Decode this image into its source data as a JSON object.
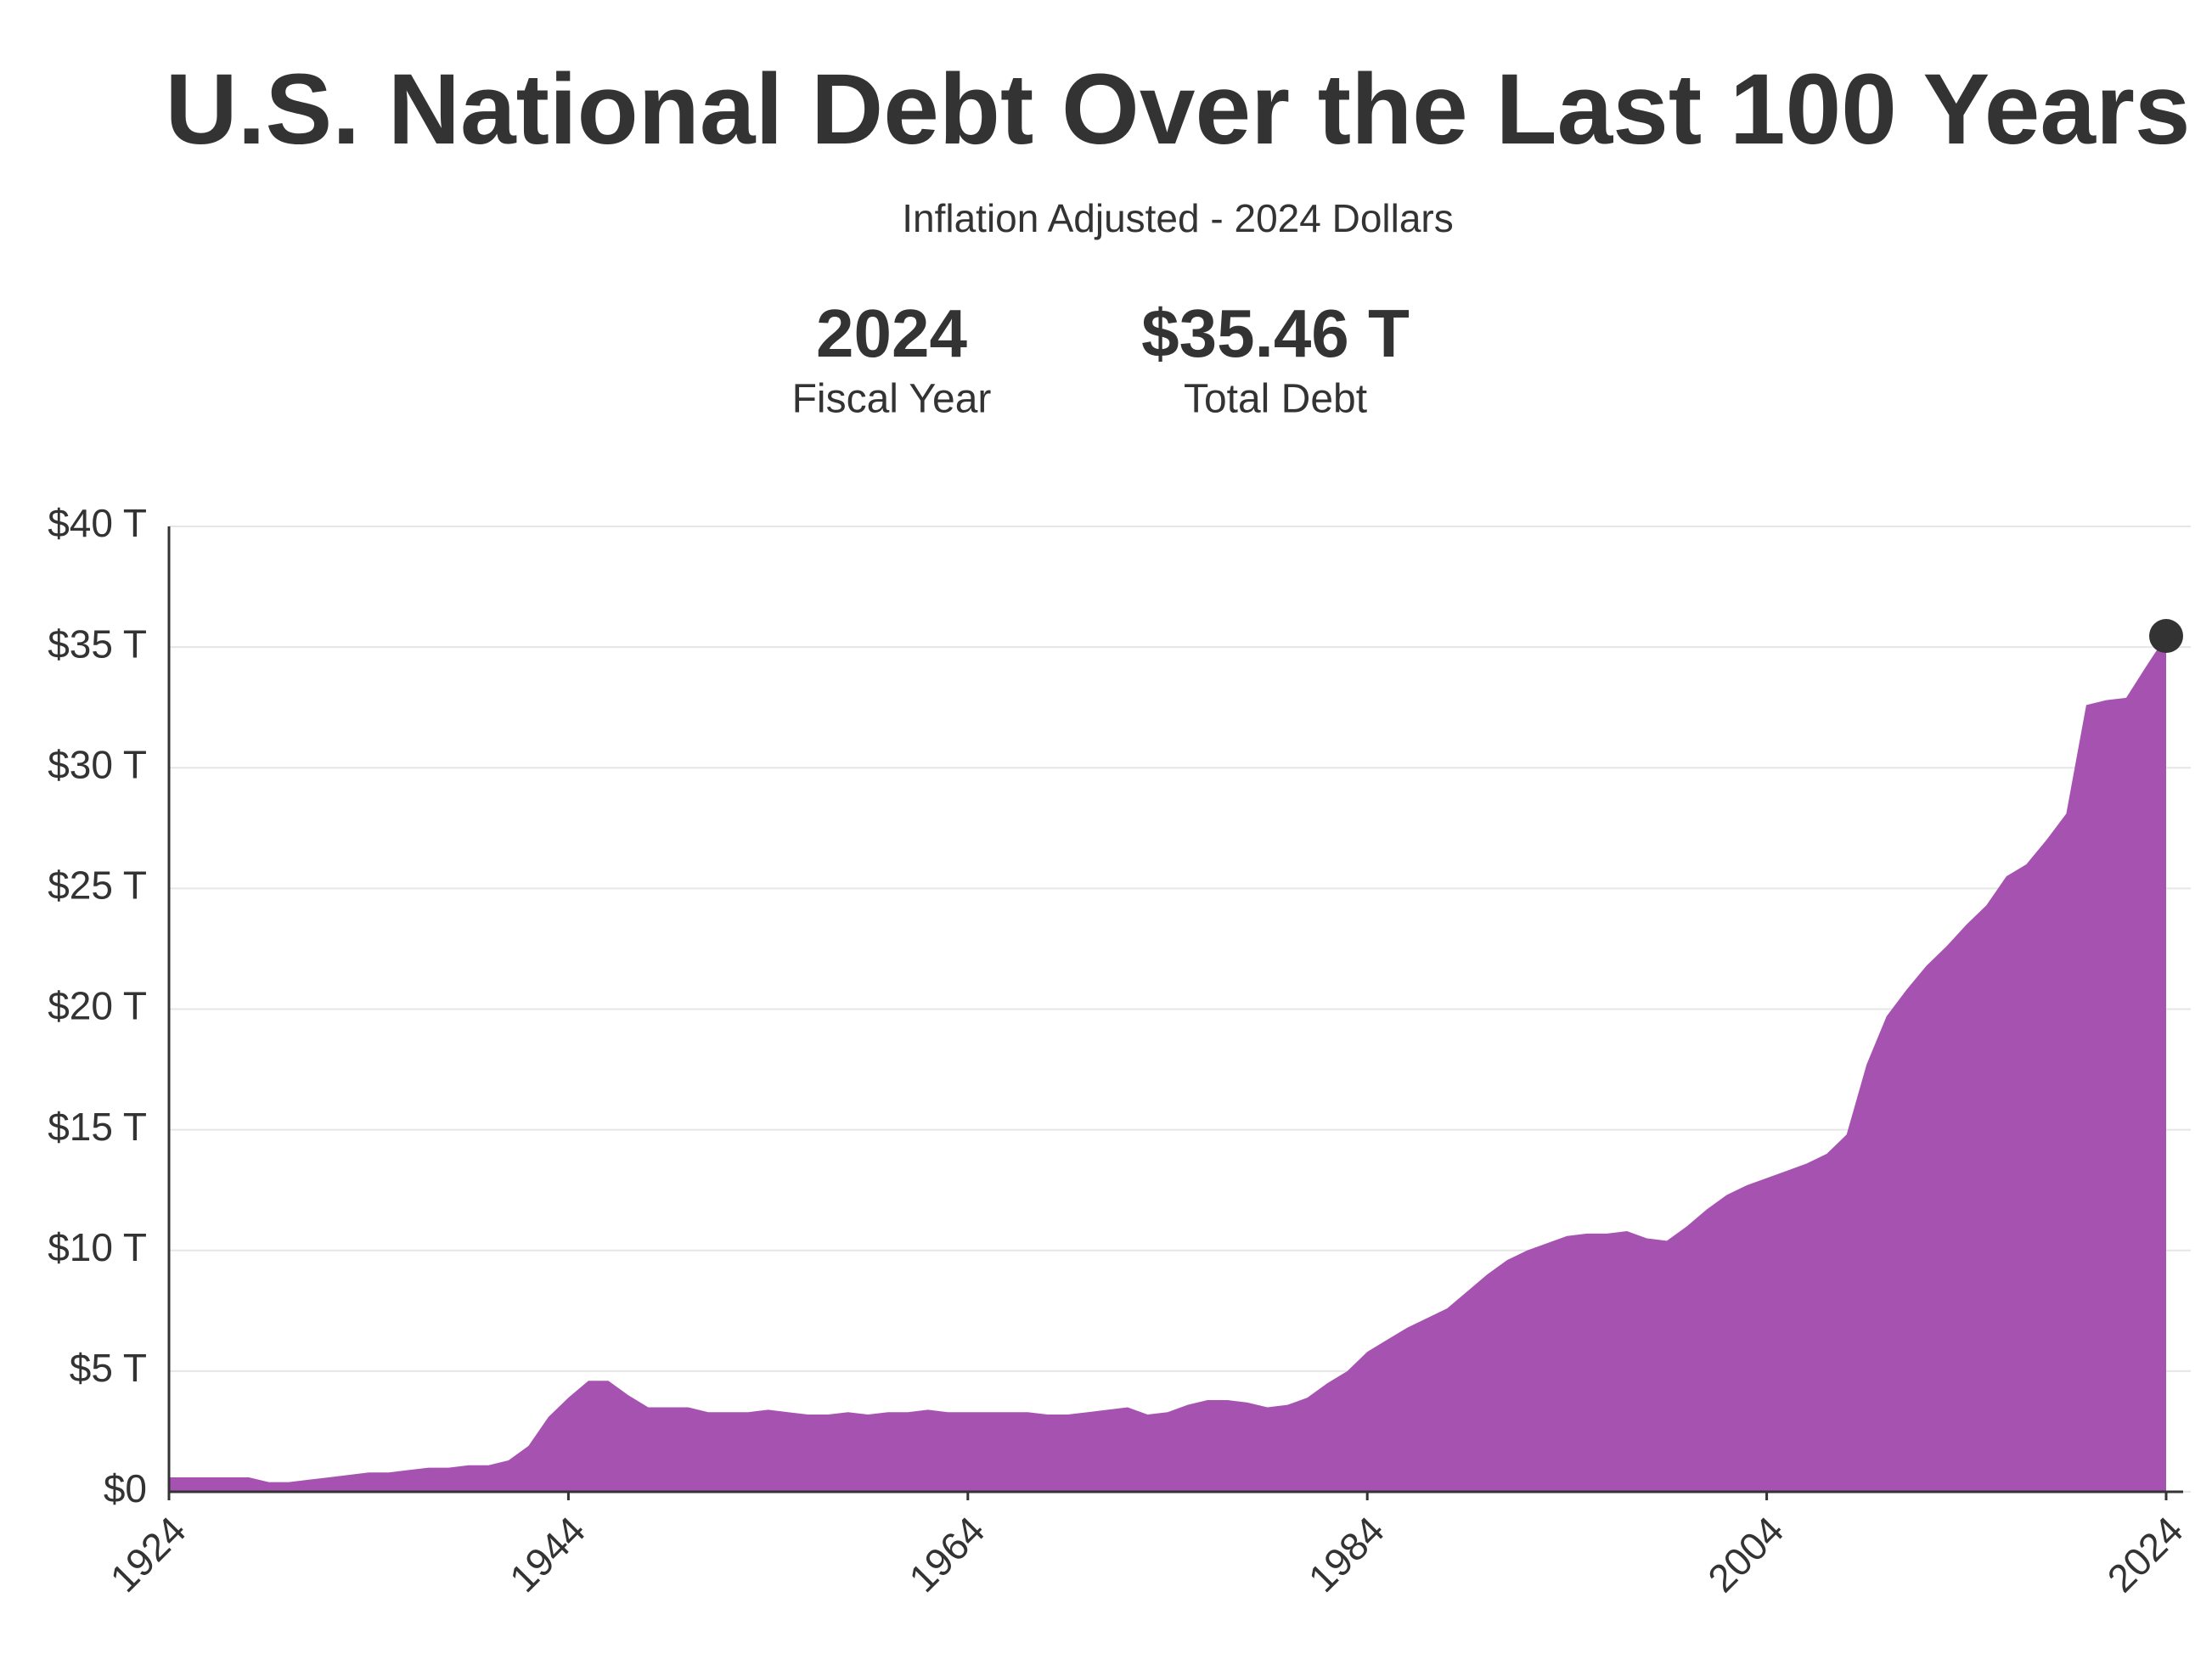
{
  "chart_data": {
    "type": "area",
    "title": "U.S. National Debt Over the Last 100 Years",
    "subtitle": "Inflation Adjusted - 2024 Dollars",
    "highlight": {
      "year": "2024",
      "year_caption": "Fiscal Year",
      "amount": "$35.46 T",
      "amount_caption": "Total Debt"
    },
    "x": [
      1924,
      1925,
      1926,
      1927,
      1928,
      1929,
      1930,
      1931,
      1932,
      1933,
      1934,
      1935,
      1936,
      1937,
      1938,
      1939,
      1940,
      1941,
      1942,
      1943,
      1944,
      1945,
      1946,
      1947,
      1948,
      1949,
      1950,
      1951,
      1952,
      1953,
      1954,
      1955,
      1956,
      1957,
      1958,
      1959,
      1960,
      1961,
      1962,
      1963,
      1964,
      1965,
      1966,
      1967,
      1968,
      1969,
      1970,
      1971,
      1972,
      1973,
      1974,
      1975,
      1976,
      1977,
      1978,
      1979,
      1980,
      1981,
      1982,
      1983,
      1984,
      1985,
      1986,
      1987,
      1988,
      1989,
      1990,
      1991,
      1992,
      1993,
      1994,
      1995,
      1996,
      1997,
      1998,
      1999,
      2000,
      2001,
      2002,
      2003,
      2004,
      2005,
      2006,
      2007,
      2008,
      2009,
      2010,
      2011,
      2012,
      2013,
      2014,
      2015,
      2016,
      2017,
      2018,
      2019,
      2020,
      2021,
      2022,
      2023,
      2024
    ],
    "values": [
      0.6,
      0.6,
      0.6,
      0.6,
      0.6,
      0.4,
      0.4,
      0.5,
      0.6,
      0.7,
      0.8,
      0.8,
      0.9,
      1.0,
      1.0,
      1.1,
      1.1,
      1.3,
      1.9,
      3.1,
      3.9,
      4.6,
      4.6,
      4.0,
      3.5,
      3.5,
      3.5,
      3.3,
      3.3,
      3.3,
      3.4,
      3.3,
      3.2,
      3.2,
      3.3,
      3.2,
      3.3,
      3.3,
      3.4,
      3.3,
      3.3,
      3.3,
      3.3,
      3.3,
      3.2,
      3.2,
      3.3,
      3.4,
      3.5,
      3.2,
      3.3,
      3.6,
      3.8,
      3.8,
      3.7,
      3.5,
      3.6,
      3.9,
      4.5,
      5.0,
      5.8,
      6.3,
      6.8,
      7.2,
      7.6,
      8.3,
      9.0,
      9.6,
      10.0,
      10.3,
      10.6,
      10.7,
      10.7,
      10.8,
      10.5,
      10.4,
      11.0,
      11.7,
      12.3,
      12.7,
      13.0,
      13.3,
      13.6,
      14.0,
      14.8,
      17.7,
      19.7,
      20.8,
      21.8,
      22.6,
      23.5,
      24.3,
      25.5,
      26.0,
      27.0,
      28.1,
      32.6,
      32.8,
      32.9,
      34.2,
      35.46
    ],
    "color": "#a652b1",
    "marker_color": "#333333",
    "xlim": [
      1924,
      2024
    ],
    "xticks": [
      1924,
      1944,
      1964,
      1984,
      2004,
      2024
    ],
    "ylim": [
      0,
      40
    ],
    "yticks": [
      {
        "value": 0,
        "label": "$0"
      },
      {
        "value": 5,
        "label": "$5 T"
      },
      {
        "value": 10,
        "label": "$10 T"
      },
      {
        "value": 15,
        "label": "$15 T"
      },
      {
        "value": 20,
        "label": "$20 T"
      },
      {
        "value": 25,
        "label": "$25 T"
      },
      {
        "value": 30,
        "label": "$30 T"
      },
      {
        "value": 35,
        "label": "$35 T"
      },
      {
        "value": 40,
        "label": "$40 T"
      }
    ],
    "grid": true
  }
}
